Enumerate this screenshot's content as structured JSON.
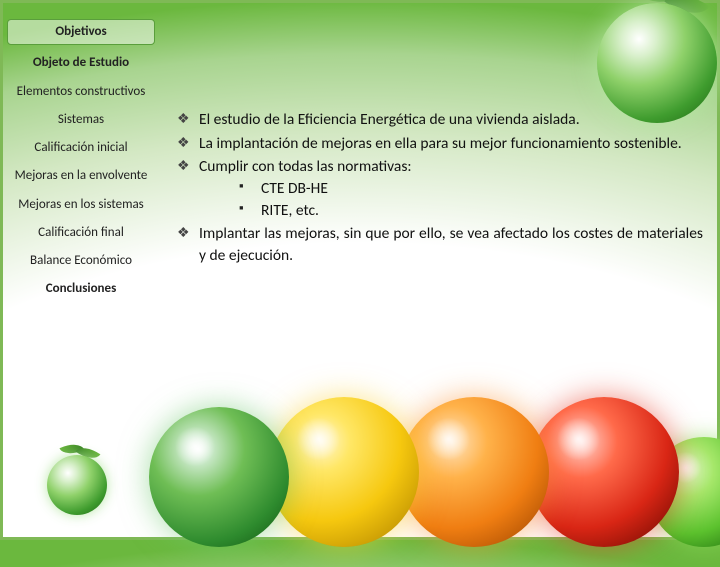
{
  "sidebar": {
    "items": [
      {
        "label": "Objetivos",
        "bold": true,
        "active": true
      },
      {
        "label": "Objeto de Estudio",
        "bold": true
      },
      {
        "label": "Elementos constructivos"
      },
      {
        "label": "Sistemas"
      },
      {
        "label": "Calificación inicial"
      },
      {
        "label": "Mejoras en la envolvente"
      },
      {
        "label": "Mejoras en los sistemas"
      },
      {
        "label": "Calificación final"
      },
      {
        "label": "Balance Económico"
      },
      {
        "label": "Conclusiones",
        "bold": true
      }
    ]
  },
  "main": {
    "bullets": [
      "El estudio de la Eficiencia Energética de una vivienda aislada.",
      "La implantación de mejoras en ella para su mejor funcionamiento sostenible.",
      "Cumplir con todas las normativas:",
      "Implantar las mejoras, sin que por ello, se vea afectado los costes de materiales y de ejecución."
    ],
    "subbullets": [
      "CTE DB-HE",
      "RITE, etc."
    ]
  },
  "decor": {
    "globe_row_colors": [
      "#2e8b2e",
      "#f6c80f",
      "#f07e12",
      "#d92615",
      "#5cc22e"
    ],
    "background_edge": "#7fb956"
  }
}
